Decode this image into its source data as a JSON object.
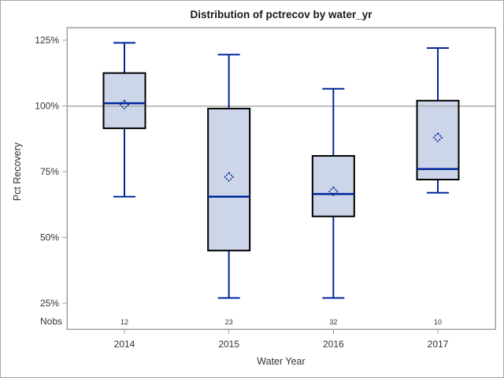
{
  "title": "Distribution of pctrecov by water_yr",
  "y_axis": {
    "title": "Pct Recovery",
    "tick_labels": [
      "125%",
      "100%",
      "75%",
      "50%",
      "25%"
    ],
    "tick_values": [
      125,
      100,
      75,
      50,
      25
    ]
  },
  "x_axis": {
    "title": "Water Year",
    "categories": [
      "2014",
      "2015",
      "2016",
      "2017"
    ]
  },
  "nobs_label": "Nobs",
  "colors": {
    "box_fill": "#ccd6e8",
    "box_border": "#000000",
    "line": "#00269c",
    "grid": "#ababab",
    "frame": "#a0a0a0",
    "text": "#333333"
  },
  "chart_data": {
    "type": "boxplot",
    "title": "Distribution of pctrecov by water_yr",
    "xlabel": "Water Year",
    "ylabel": "Pct Recovery",
    "ylim": [
      25,
      125
    ],
    "y_tick_step": 25,
    "y_tick_format": "percent",
    "reference_line": 100,
    "grid": "reference line at 100% only",
    "legend": "none",
    "categories": [
      "2014",
      "2015",
      "2016",
      "2017"
    ],
    "series": [
      {
        "category": "2014",
        "whisker_low": 65.5,
        "q1": 91.5,
        "median": 101,
        "q3": 112.5,
        "whisker_high": 124,
        "mean": 100.5,
        "nobs": 12
      },
      {
        "category": "2015",
        "whisker_low": 27,
        "q1": 45,
        "median": 65.5,
        "q3": 99,
        "whisker_high": 119.5,
        "mean": 73,
        "nobs": 23
      },
      {
        "category": "2016",
        "whisker_low": 27,
        "q1": 58,
        "median": 66.5,
        "q3": 81,
        "whisker_high": 106.5,
        "mean": 67.5,
        "nobs": 32
      },
      {
        "category": "2017",
        "whisker_low": 67,
        "q1": 72,
        "median": 76,
        "q3": 102,
        "whisker_high": 122,
        "mean": 88,
        "nobs": 10
      }
    ]
  }
}
